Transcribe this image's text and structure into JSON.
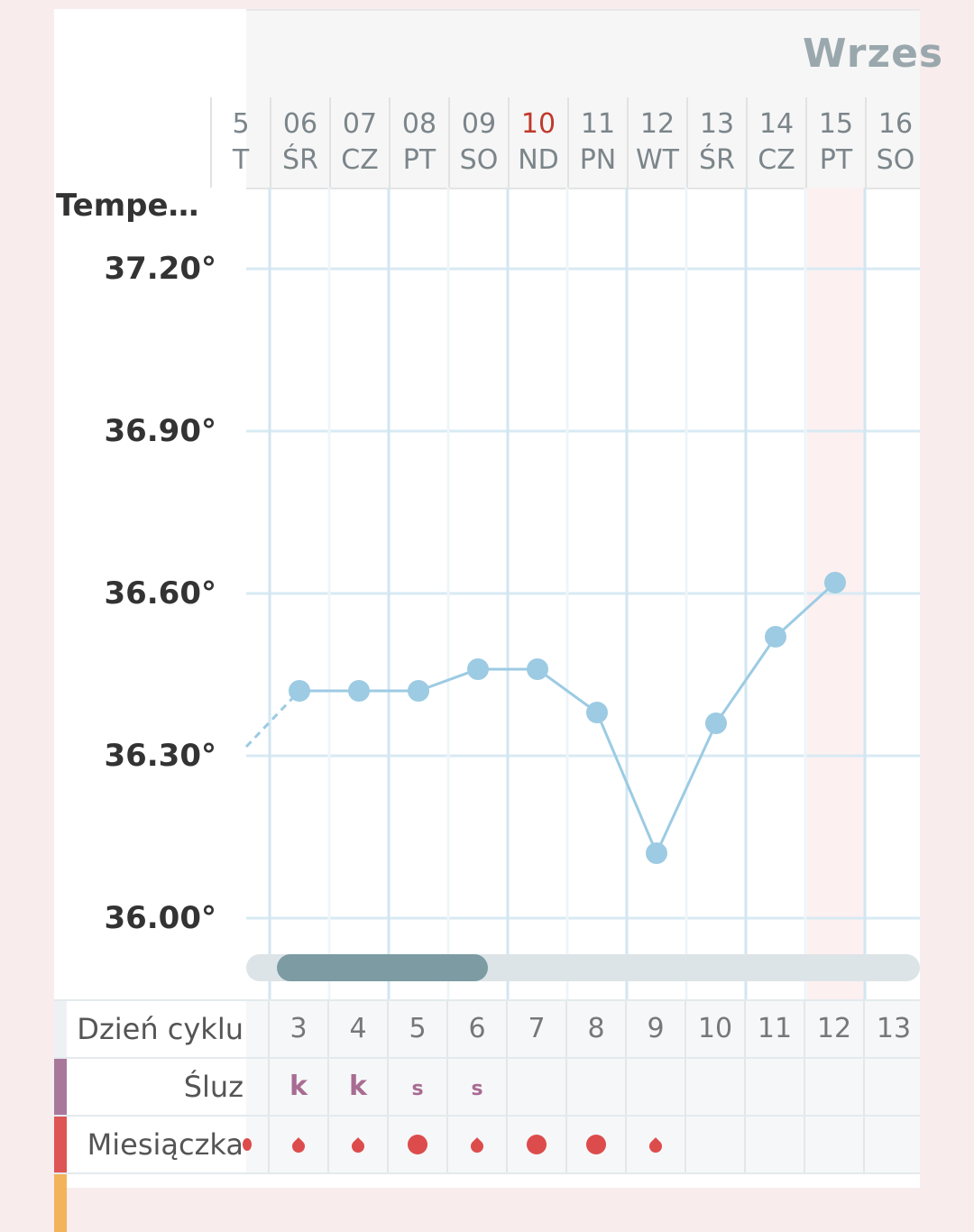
{
  "header": {
    "month_title": "Wrzes"
  },
  "days": [
    {
      "num": "5",
      "weekday": "T"
    },
    {
      "num": "06",
      "weekday": "ŚR"
    },
    {
      "num": "07",
      "weekday": "CZ"
    },
    {
      "num": "08",
      "weekday": "PT"
    },
    {
      "num": "09",
      "weekday": "SO"
    },
    {
      "num": "10",
      "weekday": "ND",
      "sunday": true
    },
    {
      "num": "11",
      "weekday": "PN"
    },
    {
      "num": "12",
      "weekday": "WT"
    },
    {
      "num": "13",
      "weekday": "ŚR"
    },
    {
      "num": "14",
      "weekday": "CZ"
    },
    {
      "num": "15",
      "weekday": "PT",
      "highlight": true
    },
    {
      "num": "16",
      "weekday": "SO"
    }
  ],
  "chart": {
    "y_title": "Tempe…",
    "y_labels": [
      "37.20°",
      "36.90°",
      "36.60°",
      "36.30°",
      "36.00°"
    ]
  },
  "chart_data": {
    "type": "line",
    "ylabel": "Tempe…",
    "y_ticks": [
      37.2,
      36.9,
      36.6,
      36.3,
      36.0
    ],
    "categories": [
      "06",
      "07",
      "08",
      "09",
      "10",
      "11",
      "12",
      "13",
      "14",
      "15"
    ],
    "values": [
      36.42,
      36.42,
      36.42,
      36.46,
      36.46,
      36.38,
      36.12,
      36.36,
      36.52,
      36.62
    ],
    "color": "#9ccbe3"
  },
  "table": {
    "cycle_label": "Dzień cyklu",
    "cycle_days": [
      "3",
      "4",
      "5",
      "6",
      "7",
      "8",
      "9",
      "10",
      "11",
      "12",
      "13"
    ],
    "mucus_label": "Śluz",
    "mucus": [
      "k",
      "k",
      "s",
      "s",
      "",
      "",
      "",
      "",
      "",
      "",
      ""
    ],
    "menses_label": "Miesiączka",
    "menses": [
      "drop",
      "drop",
      "dot",
      "drop",
      "dot",
      "dot",
      "drop",
      "",
      "",
      "",
      ""
    ],
    "colors": {
      "mucus_marker": "#a8789a",
      "menses_marker": "#dd5555"
    }
  }
}
